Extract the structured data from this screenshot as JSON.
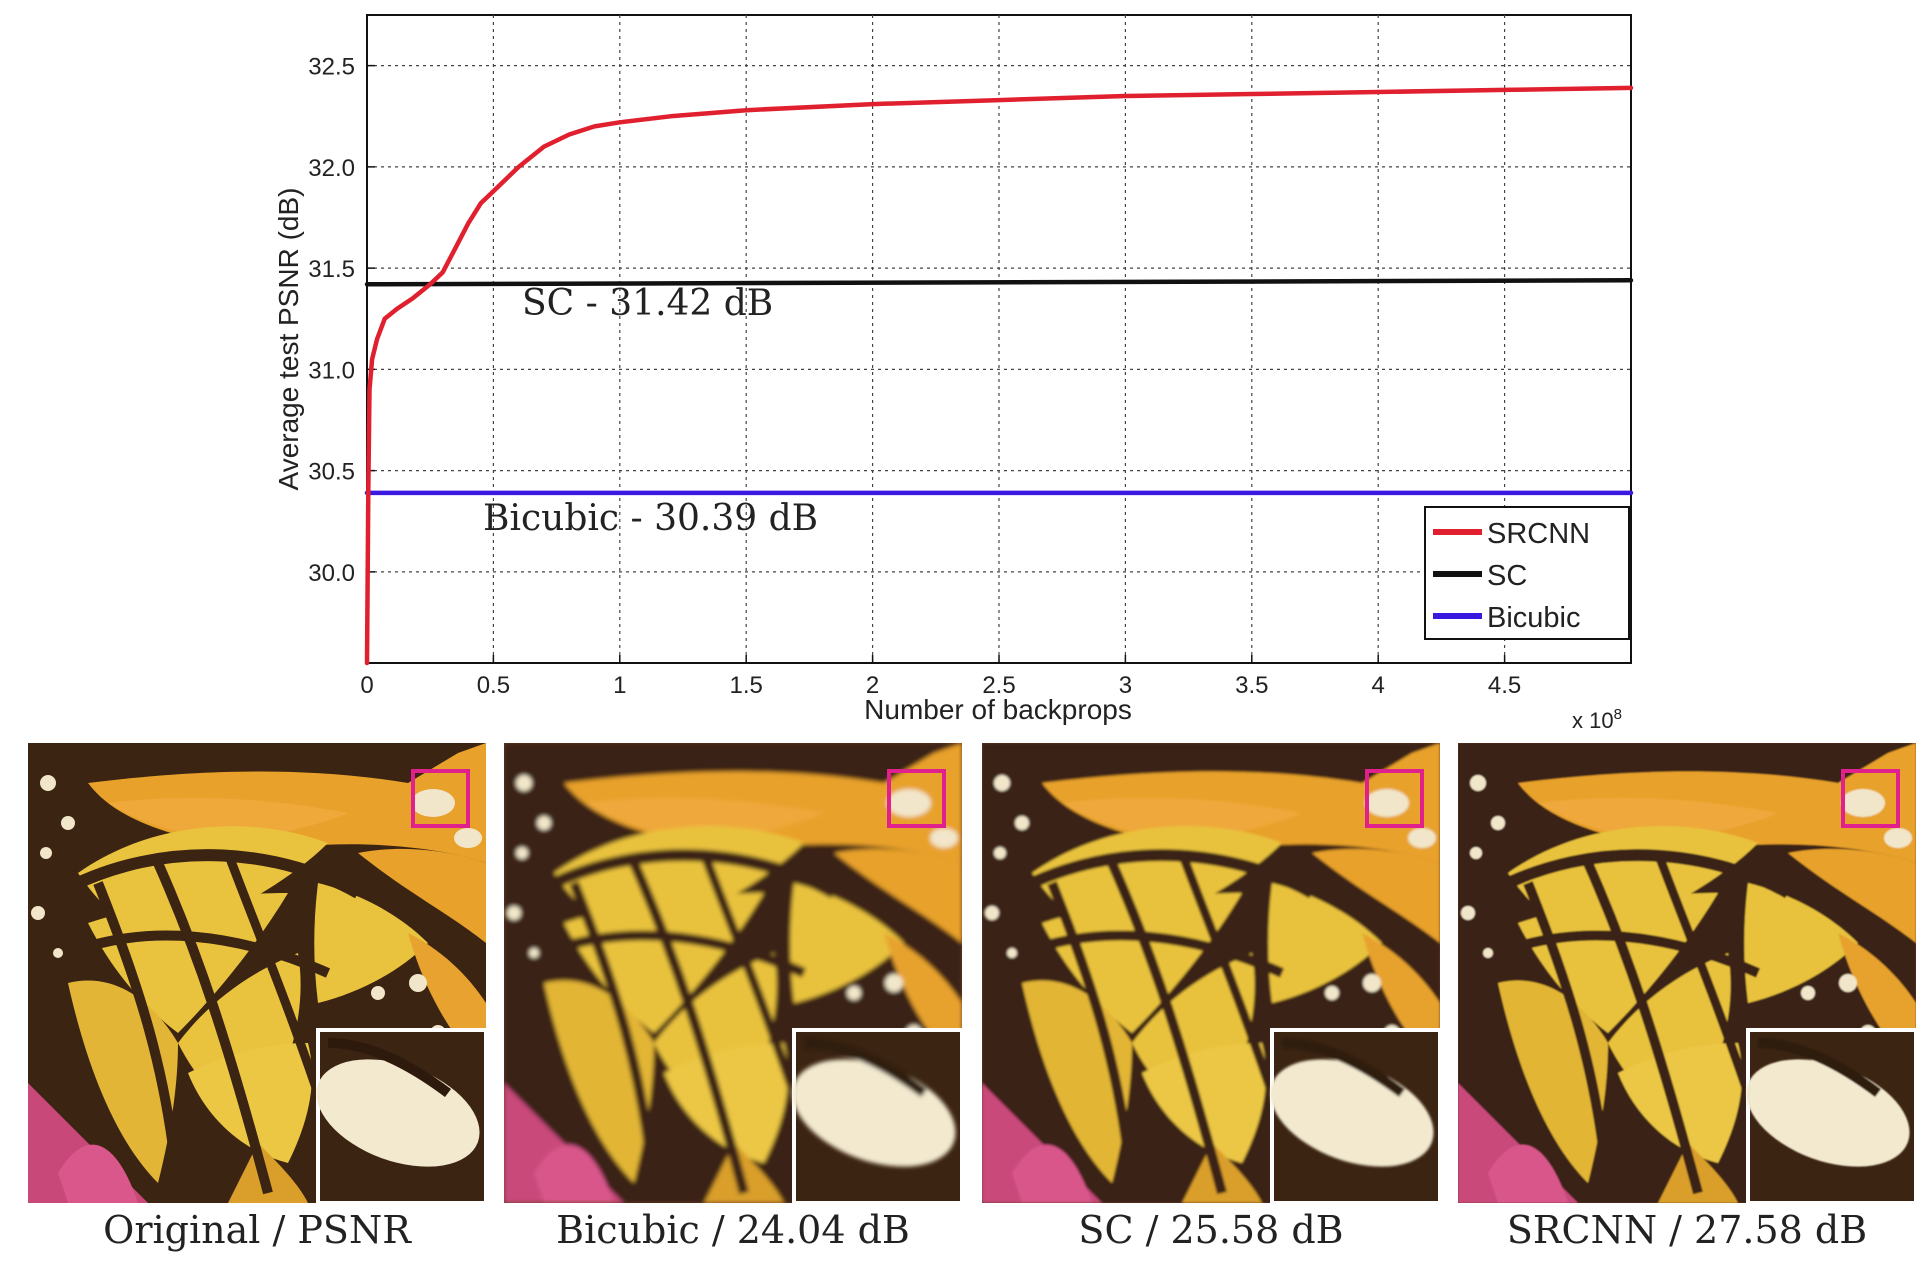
{
  "chart_data": {
    "type": "line",
    "xlabel": "Number of backprops",
    "ylabel": "Average test PSNR (dB)",
    "x_multiplier": "x 10^8",
    "xlim": [
      0,
      5
    ],
    "ylim": [
      29.55,
      32.75
    ],
    "x_ticks": [
      "0",
      "0.5",
      "1",
      "1.5",
      "2",
      "2.5",
      "3",
      "3.5",
      "4",
      "4.5"
    ],
    "y_ticks": [
      "30.0",
      "30.5",
      "31.0",
      "31.5",
      "32.0",
      "32.5"
    ],
    "grid": true,
    "legend_position": "bottom-right",
    "series": [
      {
        "name": "SRCNN",
        "color": "#e0202e",
        "x": [
          0,
          0.005,
          0.01,
          0.02,
          0.04,
          0.07,
          0.12,
          0.18,
          0.25,
          0.3,
          0.35,
          0.4,
          0.45,
          0.5,
          0.6,
          0.7,
          0.8,
          0.9,
          1.0,
          1.2,
          1.5,
          2.0,
          2.5,
          3.0,
          3.5,
          4.0,
          4.5,
          5.0
        ],
        "y": [
          29.55,
          30.4,
          30.9,
          31.05,
          31.15,
          31.25,
          31.3,
          31.35,
          31.42,
          31.48,
          31.6,
          31.72,
          31.82,
          31.88,
          32.0,
          32.1,
          32.16,
          32.2,
          32.22,
          32.25,
          32.28,
          32.31,
          32.33,
          32.35,
          32.36,
          32.37,
          32.38,
          32.39
        ]
      },
      {
        "name": "SC",
        "color": "#111111",
        "x": [
          0,
          5
        ],
        "y": [
          31.42,
          31.44
        ]
      },
      {
        "name": "Bicubic",
        "color": "#3a18e0",
        "x": [
          0,
          5
        ],
        "y": [
          30.39,
          30.39
        ]
      }
    ],
    "annotations": [
      {
        "text": "SC - 31.42 dB"
      },
      {
        "text": "Bicubic - 30.39 dB"
      }
    ]
  },
  "panels": [
    {
      "caption": "Original / PSNR"
    },
    {
      "caption": "Bicubic / 24.04 dB"
    },
    {
      "caption": "SC / 25.58 dB"
    },
    {
      "caption": "SRCNN / 27.58 dB"
    }
  ],
  "colors": {
    "wing_orange": "#e8a12a",
    "wing_yellow": "#e9c23e",
    "vein_dark": "#3b2412",
    "highlight_box": "#e0208c",
    "flower_pink": "#c8487a"
  }
}
